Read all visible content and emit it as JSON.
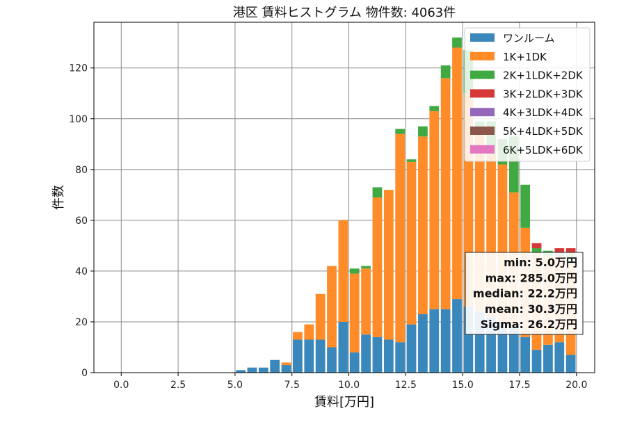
{
  "chart_data": {
    "type": "bar",
    "stacked": true,
    "title": "港区 賃料ヒストグラム  物件数: 4063件",
    "xlabel": "賃料[万円]",
    "ylabel": "件数",
    "xlim": [
      -1.2,
      20.8
    ],
    "ylim": [
      0,
      138
    ],
    "xticks": [
      "0.0",
      "2.5",
      "5.0",
      "7.5",
      "10.0",
      "12.5",
      "15.0",
      "17.5",
      "20.0"
    ],
    "xtick_values": [
      0,
      2.5,
      5,
      7.5,
      10,
      12.5,
      15,
      17.5,
      20
    ],
    "yticks": [
      0,
      20,
      40,
      60,
      80,
      100,
      120
    ],
    "grid": true,
    "legend_position": "top-right",
    "bin_width": 0.5,
    "bin_starts": [
      5.0,
      5.5,
      6.0,
      6.5,
      7.0,
      7.5,
      8.0,
      8.5,
      9.0,
      9.5,
      10.0,
      10.5,
      11.0,
      11.5,
      12.0,
      12.5,
      13.0,
      13.5,
      14.0,
      14.5,
      15.0,
      15.5,
      16.0,
      16.5,
      17.0,
      17.5,
      18.0,
      18.5,
      19.0,
      19.5
    ],
    "series": [
      {
        "name": "ワンルーム",
        "color": "#3a87bc",
        "values": [
          1,
          2,
          2,
          5,
          3,
          13,
          13,
          13,
          10,
          20,
          8,
          15,
          14,
          13,
          12,
          19,
          23,
          25,
          25,
          29,
          26,
          24,
          22,
          20,
          18,
          14,
          9,
          11,
          12,
          7
        ]
      },
      {
        "name": "1K+1DK",
        "color": "#ff8c28",
        "values": [
          0,
          0,
          0,
          0,
          1,
          3,
          6,
          18,
          32,
          40,
          31,
          26,
          55,
          59,
          82,
          64,
          70,
          78,
          91,
          99,
          84,
          70,
          64,
          62,
          53,
          43,
          38,
          35,
          34,
          36
        ]
      },
      {
        "name": "2K+1LDK+2DK",
        "color": "#41a941",
        "values": [
          0,
          0,
          0,
          0,
          0,
          0,
          0,
          0,
          0,
          0,
          2,
          1,
          4,
          0,
          2,
          1,
          4,
          2,
          5,
          4,
          17,
          5,
          13,
          10,
          22,
          17,
          2,
          2,
          1,
          4
        ]
      },
      {
        "name": "3K+2LDK+3DK",
        "color": "#d63838",
        "values": [
          0,
          0,
          0,
          0,
          0,
          0,
          0,
          0,
          0,
          0,
          0,
          0,
          0,
          0,
          0,
          0,
          0,
          0,
          0,
          0,
          0,
          0,
          0,
          0,
          0,
          0,
          2,
          0,
          2,
          2
        ]
      },
      {
        "name": "4K+3LDK+4DK",
        "color": "#9467bd",
        "values": [
          0,
          0,
          0,
          0,
          0,
          0,
          0,
          0,
          0,
          0,
          0,
          0,
          0,
          0,
          0,
          0,
          0,
          0,
          0,
          0,
          0,
          0,
          0,
          0,
          0,
          0,
          0,
          0,
          0,
          0
        ]
      },
      {
        "name": "5K+4LDK+5DK",
        "color": "#8c564b",
        "values": [
          0,
          0,
          0,
          0,
          0,
          0,
          0,
          0,
          0,
          0,
          0,
          0,
          0,
          0,
          0,
          0,
          0,
          0,
          0,
          0,
          0,
          0,
          0,
          0,
          0,
          0,
          0,
          0,
          0,
          0
        ]
      },
      {
        "name": "6K+5LDK+6DK",
        "color": "#e377c2",
        "values": [
          0,
          0,
          0,
          0,
          0,
          0,
          0,
          0,
          0,
          0,
          0,
          0,
          0,
          0,
          0,
          0,
          0,
          0,
          0,
          0,
          0,
          0,
          0,
          0,
          0,
          0,
          0,
          0,
          0,
          0
        ]
      }
    ],
    "stats_box": [
      "min: 5.0万円",
      "max: 285.0万円",
      "median: 22.2万円",
      "mean: 30.3万円",
      "Sigma: 26.2万円"
    ]
  }
}
